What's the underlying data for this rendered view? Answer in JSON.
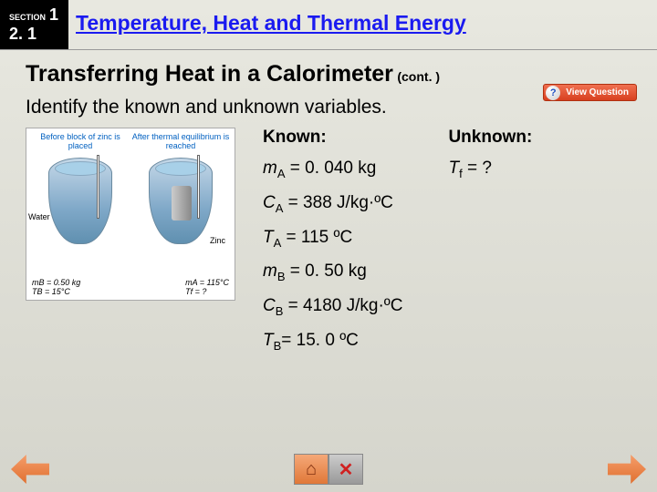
{
  "header": {
    "section_label": "SECTION",
    "section_num1": "1",
    "section_num2": "2. 1",
    "title": "Temperature, Heat and Thermal Energy"
  },
  "subtitle": "Transferring Heat in a Calorimeter",
  "cont": "(cont. )",
  "view_question": "View Question",
  "instruction": "Identify the known and unknown variables.",
  "diagram": {
    "left_caption": "Before block of zinc is placed",
    "right_caption": "After thermal equilibrium is reached",
    "water": "Water",
    "zinc": "Zinc",
    "bl_left": "mB = 0.50 kg\nTB = 15°C",
    "bl_right": "mA = 115°C\nTf = ?"
  },
  "known": {
    "head": "Known:",
    "lines": [
      {
        "sym": "m",
        "sub": "A",
        "rest": " = 0. 040 kg"
      },
      {
        "sym": "C",
        "sub": "A",
        "rest": " = 388 J/kg·ºC"
      },
      {
        "sym": "T",
        "sub": "A",
        "rest": " = 115 ºC"
      },
      {
        "sym": "m",
        "sub": "B",
        "rest": " = 0. 50 kg"
      },
      {
        "sym": "C",
        "sub": "B",
        "rest": " = 4180 J/kg·ºC"
      },
      {
        "sym": "T",
        "sub": "B",
        "rest": "= 15. 0 ºC"
      }
    ]
  },
  "unknown": {
    "head": "Unknown:",
    "lines": [
      {
        "sym": "T",
        "sub": "f",
        "rest": " = ?"
      }
    ]
  }
}
